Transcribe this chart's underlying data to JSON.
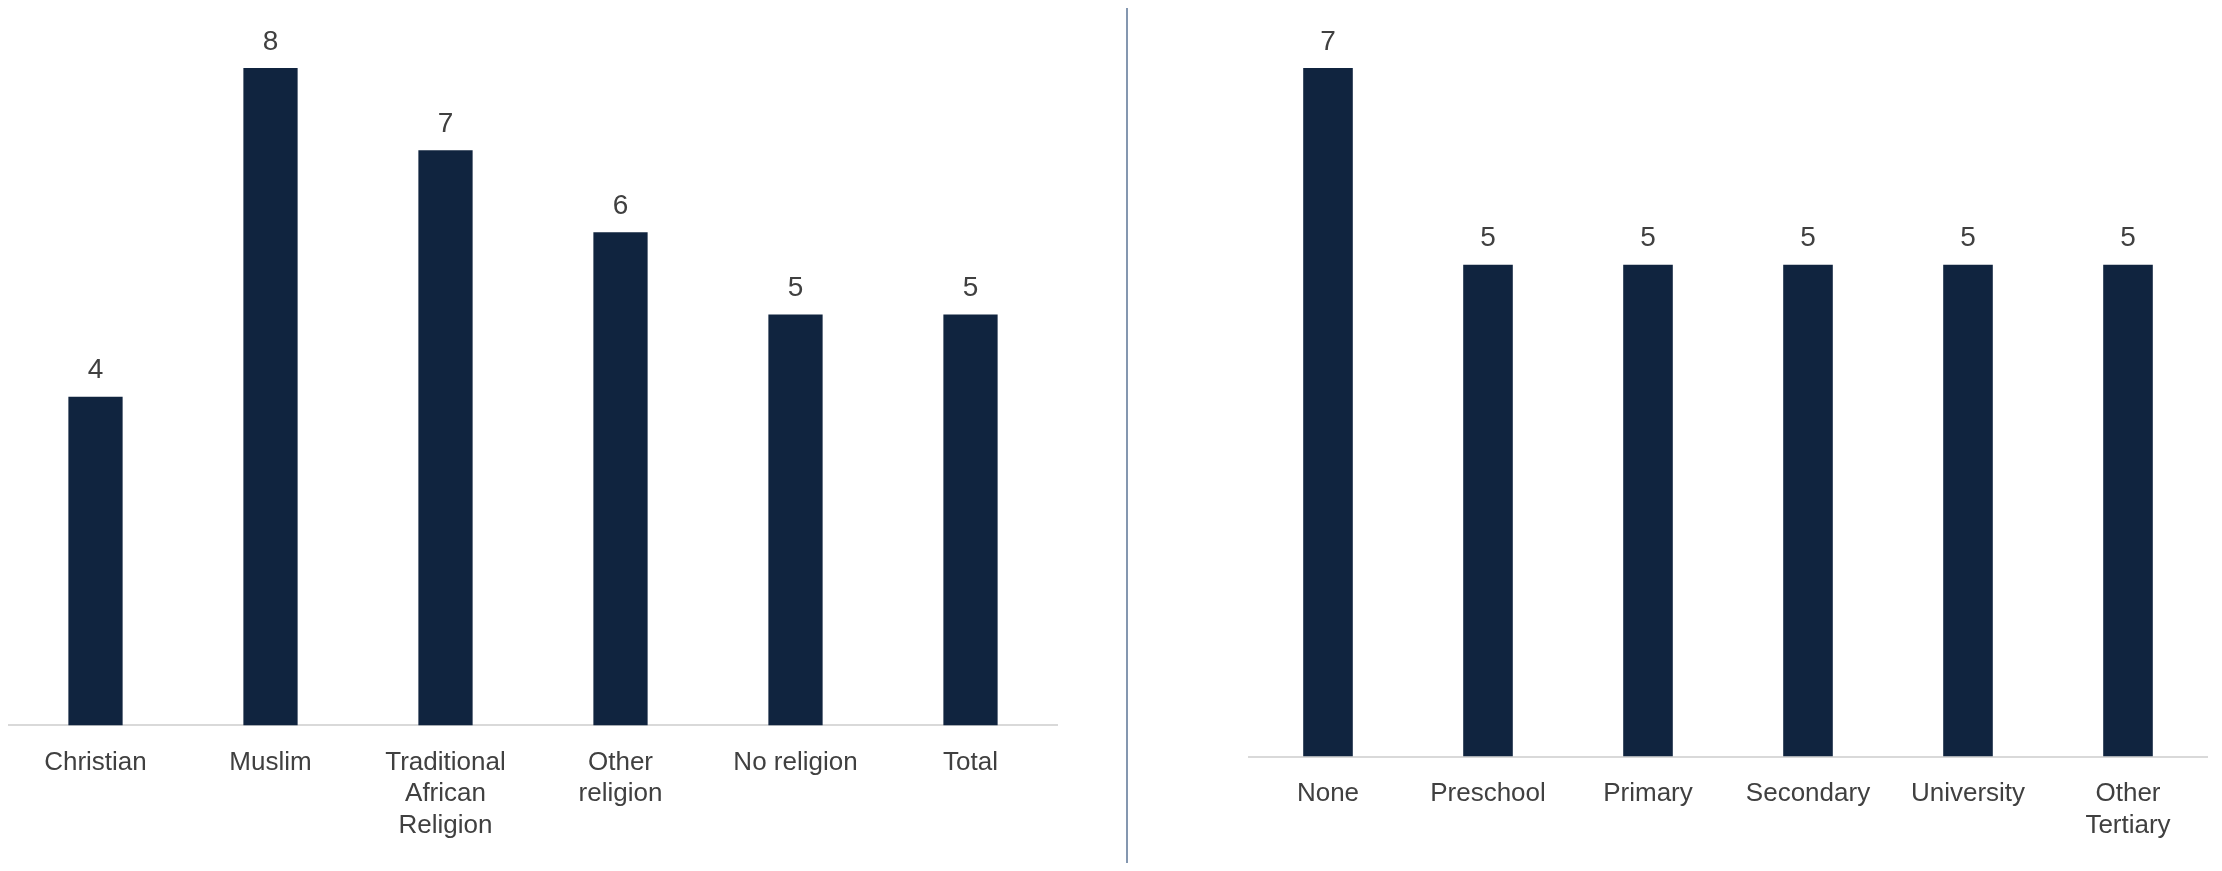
{
  "chart_data": [
    {
      "type": "bar",
      "categories": [
        "Christian",
        "Muslim",
        "Traditional African Religion",
        "Other religion",
        "No religion",
        "Total"
      ],
      "values": [
        4,
        8,
        7,
        6,
        5,
        5
      ],
      "color": "#10243f",
      "data_labels": true,
      "grid": false,
      "legend": false
    },
    {
      "type": "bar",
      "categories": [
        "None",
        "Preschool",
        "Primary",
        "Secondary",
        "University",
        "Other Tertiary"
      ],
      "values": [
        7,
        5,
        5,
        5,
        5,
        5
      ],
      "color": "#10243f",
      "data_labels": true,
      "grid": false,
      "legend": false
    }
  ]
}
